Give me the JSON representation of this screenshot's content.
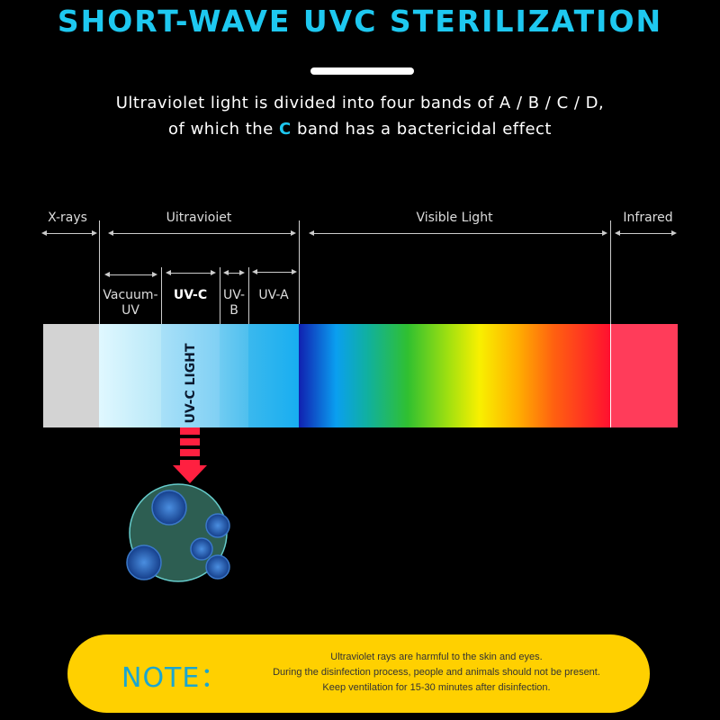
{
  "title": "SHORT-WAVE UVC STERILIZATION",
  "subtitle": {
    "line1": "Ultraviolet light is divided into four bands of A / B / C / D,",
    "line2_pre": "of which the ",
    "line2_highlight": "C",
    "line2_post": " band has a bactericidal effect"
  },
  "spectrum": {
    "xrays": "X-rays",
    "ultraviolet": "Uitravioiet",
    "visible": "Visible Light",
    "infrared": "Infrared",
    "vacuum_uv_1": "Vacuum-",
    "vacuum_uv_2": "UV",
    "uvc": "UV-C",
    "uvb_1": "UV-",
    "uvb_2": "B",
    "uva": "UV-A",
    "uvc_light": "UV-C LIGHT"
  },
  "note": {
    "label": "NOTE：",
    "line1": "Ultraviolet rays are harmful to the skin and eyes.",
    "line2": "During the disinfection process, people and animals should not be present.",
    "line3": "Keep ventilation for 15-30 minutes after disinfection."
  },
  "colors": {
    "accent": "#1ec8f0",
    "note_bg": "#ffd000",
    "arrow": "#ff2040",
    "infrared": "#ff3c5a"
  }
}
